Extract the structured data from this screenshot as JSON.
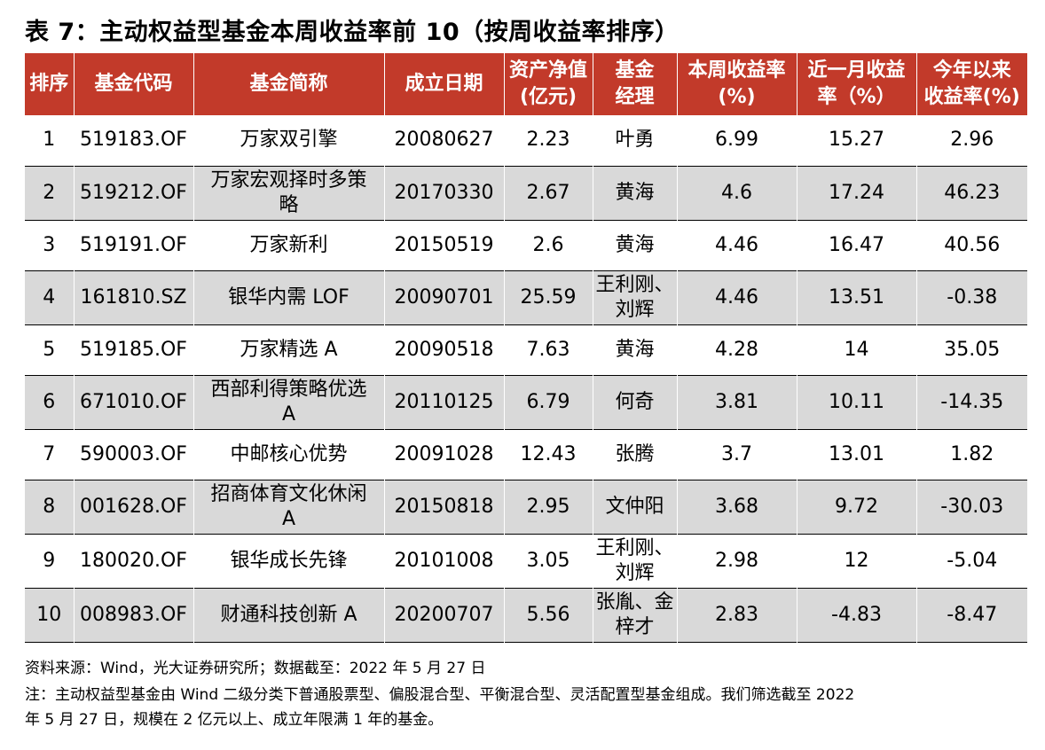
{
  "title": "表 7：主动权益型基金本周收益率前 10（按周收益率排序）",
  "headers": [
    [
      "排序"
    ],
    [
      "基金代码"
    ],
    [
      "基金简称"
    ],
    [
      "成立日期"
    ],
    [
      "资产净值",
      "(亿元)"
    ],
    [
      "基金",
      "经理"
    ],
    [
      "本周收益率",
      "(%)"
    ],
    [
      "近一月收益",
      "率（%）"
    ],
    [
      "今年以来",
      "收益率(%)"
    ]
  ],
  "rows": [
    {
      "rank": "1",
      "code": "519183.OF",
      "name": [
        "万家双引擎"
      ],
      "date": "20080627",
      "nav": "2.23",
      "manager": [
        "叶勇"
      ],
      "week": "6.99",
      "month": "15.27",
      "ytd": "2.96"
    },
    {
      "rank": "2",
      "code": "519212.OF",
      "name": [
        "万家宏观择时多策",
        "略"
      ],
      "date": "20170330",
      "nav": "2.67",
      "manager": [
        "黄海"
      ],
      "week": "4.6",
      "month": "17.24",
      "ytd": "46.23"
    },
    {
      "rank": "3",
      "code": "519191.OF",
      "name": [
        "万家新利"
      ],
      "date": "20150519",
      "nav": "2.6",
      "manager": [
        "黄海"
      ],
      "week": "4.46",
      "month": "16.47",
      "ytd": "40.56"
    },
    {
      "rank": "4",
      "code": "161810.SZ",
      "name": [
        "银华内需 LOF"
      ],
      "date": "20090701",
      "nav": "25.59",
      "manager": [
        "王利刚、",
        "刘辉"
      ],
      "week": "4.46",
      "month": "13.51",
      "ytd": "-0.38"
    },
    {
      "rank": "5",
      "code": "519185.OF",
      "name": [
        "万家精选 A"
      ],
      "date": "20090518",
      "nav": "7.63",
      "manager": [
        "黄海"
      ],
      "week": "4.28",
      "month": "14",
      "ytd": "35.05"
    },
    {
      "rank": "6",
      "code": "671010.OF",
      "name": [
        "西部利得策略优选",
        "A"
      ],
      "date": "20110125",
      "nav": "6.79",
      "manager": [
        "何奇"
      ],
      "week": "3.81",
      "month": "10.11",
      "ytd": "-14.35"
    },
    {
      "rank": "7",
      "code": "590003.OF",
      "name": [
        "中邮核心优势"
      ],
      "date": "20091028",
      "nav": "12.43",
      "manager": [
        "张腾"
      ],
      "week": "3.7",
      "month": "13.01",
      "ytd": "1.82"
    },
    {
      "rank": "8",
      "code": "001628.OF",
      "name": [
        "招商体育文化休闲",
        "A"
      ],
      "date": "20150818",
      "nav": "2.95",
      "manager": [
        "文仲阳"
      ],
      "week": "3.68",
      "month": "9.72",
      "ytd": "-30.03"
    },
    {
      "rank": "9",
      "code": "180020.OF",
      "name": [
        "银华成长先锋"
      ],
      "date": "20101008",
      "nav": "3.05",
      "manager": [
        "王利刚、",
        "刘辉"
      ],
      "week": "2.98",
      "month": "12",
      "ytd": "-5.04"
    },
    {
      "rank": "10",
      "code": "008983.OF",
      "name": [
        "财通科技创新 A"
      ],
      "date": "20200707",
      "nav": "5.56",
      "manager": [
        "张胤、金",
        "梓才"
      ],
      "week": "2.83",
      "month": "-4.83",
      "ytd": "-8.47"
    }
  ],
  "footer": {
    "source": "资料来源：Wind，光大证券研究所；数据截至：2022 年 5 月 27 日",
    "note_line1": "注：主动权益型基金由 Wind 二级分类下普通股票型、偏股混合型、平衡混合型、灵活配置型基金组成。我们筛选截至 2022",
    "note_line2": "年 5 月 27 日，规模在 2 亿元以上、成立年限满 1 年的基金。"
  },
  "colors": {
    "header_bg": "#c23a2a",
    "alt_row_bg": "#d9d9d9"
  }
}
